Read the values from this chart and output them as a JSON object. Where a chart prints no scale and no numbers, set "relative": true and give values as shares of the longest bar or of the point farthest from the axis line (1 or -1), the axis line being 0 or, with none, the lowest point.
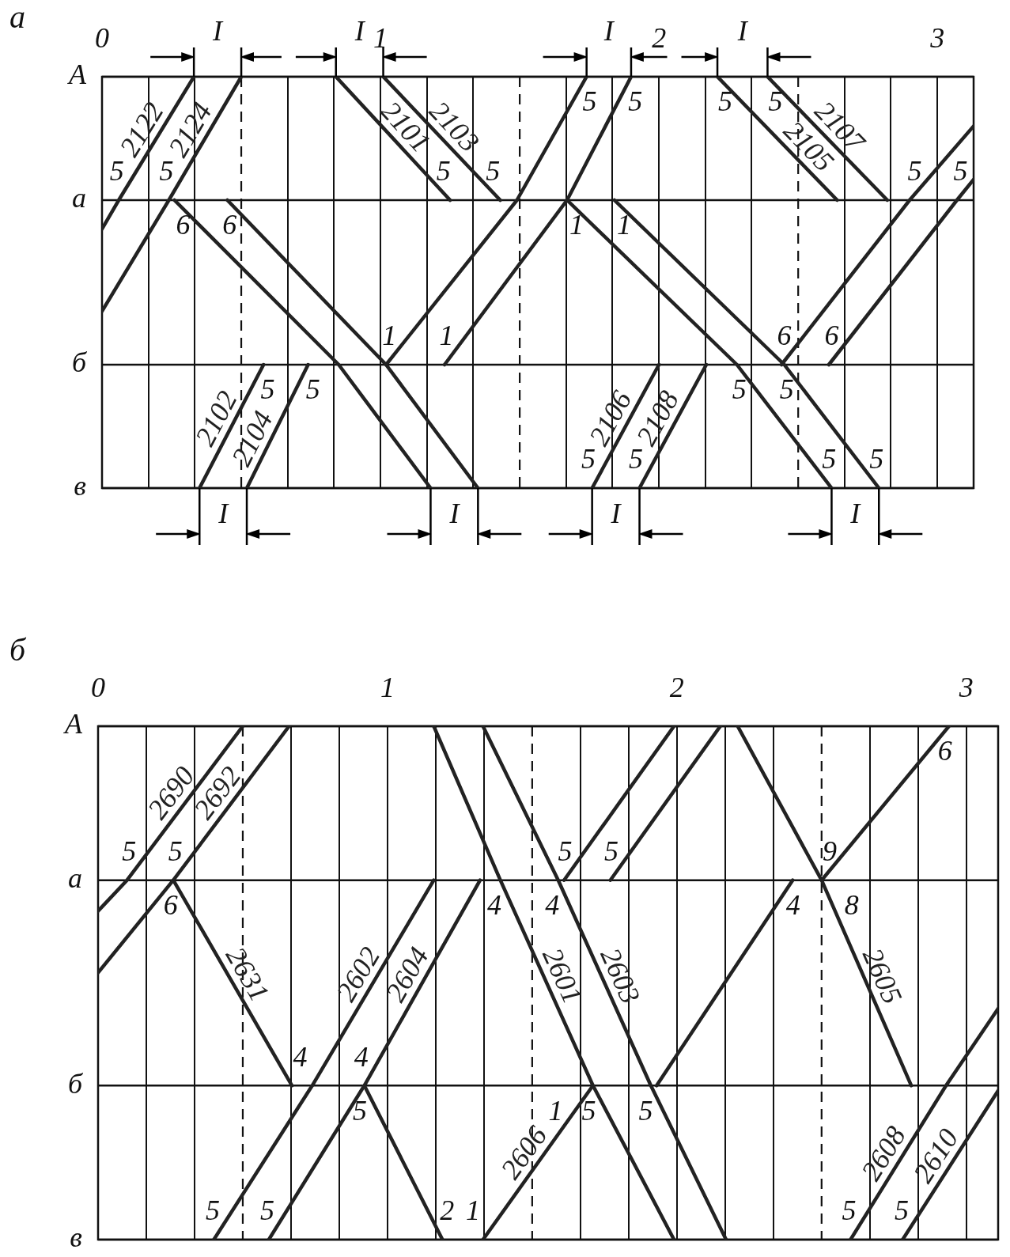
{
  "chart_data": [
    {
      "type": "line",
      "title": "а",
      "relative": true,
      "grid": "x",
      "xlim": [
        0,
        3.13
      ],
      "xticks": [
        0,
        {
          "value": 0.167,
          "label": null
        },
        {
          "value": 0.333,
          "label": null
        },
        {
          "value": 0.667,
          "label": null
        },
        {
          "value": 0.833,
          "label": null
        },
        1,
        {
          "value": 1.167,
          "label": null
        },
        {
          "value": 1.333,
          "label": null
        },
        {
          "value": 1.667,
          "label": null
        },
        {
          "value": 1.833,
          "label": null
        },
        2,
        {
          "value": 2.167,
          "label": null
        },
        {
          "value": 2.333,
          "label": null
        },
        {
          "value": 2.667,
          "label": null
        },
        {
          "value": 2.833,
          "label": null
        },
        3
      ],
      "ref_lines": [
        {
          "axis": "y",
          "value": 1,
          "label": "А"
        },
        {
          "axis": "y",
          "value": 0.7,
          "label": "а"
        },
        {
          "axis": "y",
          "value": 0.3,
          "label": "б"
        },
        {
          "axis": "y",
          "value": 0,
          "label": "в"
        },
        {
          "axis": "x",
          "value": 0.5,
          "line_style": "dashed"
        },
        {
          "axis": "x",
          "value": 1.5,
          "line_style": "dashed"
        },
        {
          "axis": "x",
          "value": 2.5,
          "line_style": "dashed"
        }
      ],
      "series": [
        {
          "name": "2122",
          "color": "#222222",
          "x": [
            0,
            0.06,
            0.33
          ],
          "values": [
            0.63,
            0.7,
            1
          ]
        },
        {
          "name": "2124",
          "color": "#222222",
          "x": [
            0,
            0.24,
            0.5
          ],
          "values": [
            0.43,
            0.7,
            1
          ]
        },
        {
          "color": "#222222",
          "x": [
            0.26,
            0.85,
            1.18
          ],
          "values": [
            0.7,
            0.3,
            0
          ]
        },
        {
          "color": "#222222",
          "x": [
            0.45,
            1.02,
            1.35
          ],
          "values": [
            0.7,
            0.3,
            0
          ]
        },
        {
          "name": "2102",
          "color": "#222222",
          "x": [
            0.35,
            0.58
          ],
          "values": [
            0,
            0.3
          ]
        },
        {
          "name": "2104",
          "color": "#222222",
          "x": [
            0.52,
            0.74
          ],
          "values": [
            0,
            0.3
          ]
        },
        {
          "name": "2101",
          "color": "#222222",
          "x": [
            0.84,
            1.25
          ],
          "values": [
            1,
            0.7
          ]
        },
        {
          "name": "2103",
          "color": "#222222",
          "x": [
            1.01,
            1.43
          ],
          "values": [
            1,
            0.7
          ]
        },
        {
          "color": "#222222",
          "x": [
            1.02,
            1.49,
            1.74
          ],
          "values": [
            0.3,
            0.7,
            1
          ]
        },
        {
          "color": "#222222",
          "x": [
            1.23,
            1.67,
            1.9
          ],
          "values": [
            0.3,
            0.7,
            1
          ]
        },
        {
          "color": "#222222",
          "x": [
            1.67,
            2.28,
            2.62
          ],
          "values": [
            0.7,
            0.3,
            0
          ]
        },
        {
          "color": "#222222",
          "x": [
            1.84,
            2.45,
            2.79
          ],
          "values": [
            0.7,
            0.3,
            0
          ]
        },
        {
          "name": "2106",
          "color": "#222222",
          "x": [
            1.76,
            2.0
          ],
          "values": [
            0,
            0.3
          ]
        },
        {
          "name": "2108",
          "color": "#222222",
          "x": [
            1.93,
            2.17
          ],
          "values": [
            0,
            0.3
          ]
        },
        {
          "name": "2105",
          "color": "#222222",
          "x": [
            2.21,
            2.64
          ],
          "values": [
            1,
            0.7
          ]
        },
        {
          "name": "2107",
          "color": "#222222",
          "x": [
            2.39,
            2.82
          ],
          "values": [
            1,
            0.7
          ]
        },
        {
          "color": "#222222",
          "x": [
            2.44,
            2.9,
            3.13
          ],
          "values": [
            0.3,
            0.7,
            0.88
          ]
        },
        {
          "color": "#222222",
          "x": [
            2.61,
            3.07,
            3.13
          ],
          "values": [
            0.3,
            0.7,
            0.75
          ]
        }
      ],
      "annotations": [
        {
          "text": "I",
          "x": 0.33,
          "y": 1
        },
        {
          "text": "I",
          "x": 0.84,
          "y": 1
        },
        {
          "text": "I",
          "x": 1.74,
          "y": 1
        },
        {
          "text": "I",
          "x": 2.21,
          "y": 1
        },
        {
          "text": "I",
          "x": 0.35,
          "y": 0
        },
        {
          "text": "I",
          "x": 1.18,
          "y": 0
        },
        {
          "text": "I",
          "x": 1.76,
          "y": 0
        },
        {
          "text": "I",
          "x": 2.62,
          "y": 0
        },
        {
          "text": "5",
          "x": 0.12,
          "y": 0.77
        },
        {
          "text": "5",
          "x": 0.3,
          "y": 0.77
        },
        {
          "text": "6",
          "x": 0.36,
          "y": 0.63
        },
        {
          "text": "6",
          "x": 0.55,
          "y": 0.63
        },
        {
          "text": "5",
          "x": 0.53,
          "y": 0.23
        },
        {
          "text": "5",
          "x": 0.69,
          "y": 0.23
        },
        {
          "text": "5",
          "x": 1.15,
          "y": 0.77
        },
        {
          "text": "5",
          "x": 1.33,
          "y": 0.77
        },
        {
          "text": "1",
          "x": 1.1,
          "y": 0.37
        },
        {
          "text": "5",
          "x": 1.68,
          "y": 0.93
        },
        {
          "text": "1",
          "x": 1.31,
          "y": 0.37
        },
        {
          "text": "5",
          "x": 1.85,
          "y": 0.93
        },
        {
          "text": "1",
          "x": 1.78,
          "y": 0.63
        },
        {
          "text": "5",
          "x": 2.36,
          "y": 0.23
        },
        {
          "text": "5",
          "x": 2.54,
          "y": 0.07
        },
        {
          "text": "1",
          "x": 1.95,
          "y": 0.63
        },
        {
          "text": "5",
          "x": 2.53,
          "y": 0.23
        },
        {
          "text": "5",
          "x": 2.71,
          "y": 0.07
        },
        {
          "text": "5",
          "x": 1.82,
          "y": 0.07
        },
        {
          "text": "5",
          "x": 1.99,
          "y": 0.07
        },
        {
          "text": "5",
          "x": 2.31,
          "y": 0.93
        },
        {
          "text": "5",
          "x": 2.49,
          "y": 0.93
        },
        {
          "text": "6",
          "x": 2.52,
          "y": 0.37
        },
        {
          "text": "5",
          "x": 2.99,
          "y": 0.77
        },
        {
          "text": "6",
          "x": 2.69,
          "y": 0.37
        },
        {
          "text": "5",
          "x": 3.09,
          "y": 0.72
        }
      ]
    },
    {
      "type": "line",
      "title": "б",
      "relative": true,
      "grid": "x",
      "xlim": [
        0,
        3.11
      ],
      "xticks": [
        0,
        {
          "value": 0.167,
          "label": null
        },
        {
          "value": 0.333,
          "label": null
        },
        {
          "value": 0.667,
          "label": null
        },
        {
          "value": 0.833,
          "label": null
        },
        1,
        {
          "value": 1.167,
          "label": null
        },
        {
          "value": 1.333,
          "label": null
        },
        {
          "value": 1.667,
          "label": null
        },
        {
          "value": 1.833,
          "label": null
        },
        2,
        {
          "value": 2.167,
          "label": null
        },
        {
          "value": 2.333,
          "label": null
        },
        {
          "value": 2.667,
          "label": null
        },
        {
          "value": 2.833,
          "label": null
        },
        3
      ],
      "ref_lines": [
        {
          "axis": "y",
          "value": 1,
          "label": "А"
        },
        {
          "axis": "y",
          "value": 0.7,
          "label": "а"
        },
        {
          "axis": "y",
          "value": 0.3,
          "label": "б"
        },
        {
          "axis": "y",
          "value": 0,
          "label": "в"
        },
        {
          "axis": "x",
          "value": 0.5,
          "line_style": "dashed"
        },
        {
          "axis": "x",
          "value": 1.5,
          "line_style": "dashed"
        },
        {
          "axis": "x",
          "value": 2.5,
          "line_style": "dashed"
        }
      ],
      "series": [
        {
          "name": "2690",
          "color": "#222222",
          "x": [
            0,
            0.1,
            0.5
          ],
          "values": [
            0.64,
            0.7,
            1
          ]
        },
        {
          "name": "2692",
          "color": "#222222",
          "x": [
            0,
            0.26,
            0.66
          ],
          "values": [
            0.52,
            0.7,
            1
          ]
        },
        {
          "name": "2631",
          "color": "#222222",
          "x": [
            0.26,
            0.67
          ],
          "values": [
            0.7,
            0.3
          ]
        },
        {
          "name": "2602",
          "color": "#222222",
          "x": [
            0.4,
            0.74,
            1.16
          ],
          "values": [
            0,
            0.3,
            0.7
          ]
        },
        {
          "name": "2604",
          "color": "#222222",
          "x": [
            0.59,
            0.92,
            1.32
          ],
          "values": [
            0,
            0.3,
            0.7
          ]
        },
        {
          "color": "#222222",
          "x": [
            0.92,
            1.19
          ],
          "values": [
            0.3,
            0
          ]
        },
        {
          "name": "2601",
          "color": "#222222",
          "x": [
            1.16,
            1.39,
            1.71,
            1.99
          ],
          "values": [
            1,
            0.7,
            0.3,
            0
          ]
        },
        {
          "name": "2603",
          "color": "#222222",
          "x": [
            1.33,
            1.59,
            1.91,
            2.17
          ],
          "values": [
            1,
            0.7,
            0.3,
            0
          ]
        },
        {
          "name": "2606",
          "color": "#222222",
          "x": [
            1.33,
            1.71
          ],
          "values": [
            0,
            0.3
          ]
        },
        {
          "color": "#222222",
          "x": [
            1.61,
            1.99
          ],
          "values": [
            0.7,
            1
          ]
        },
        {
          "color": "#222222",
          "x": [
            1.77,
            2.15
          ],
          "values": [
            0.7,
            1
          ]
        },
        {
          "color": "#222222",
          "x": [
            1.93,
            2.4
          ],
          "values": [
            0.3,
            0.7
          ]
        },
        {
          "color": "#222222",
          "x": [
            2.5,
            2.94
          ],
          "values": [
            0.7,
            1
          ]
        },
        {
          "name": "2605",
          "color": "#222222",
          "x": [
            2.21,
            2.5,
            2.81
          ],
          "values": [
            1,
            0.7,
            0.3
          ]
        },
        {
          "name": "2608",
          "color": "#222222",
          "x": [
            2.6,
            2.93,
            3.11
          ],
          "values": [
            0,
            0.3,
            0.45
          ]
        },
        {
          "name": "2610",
          "color": "#222222",
          "x": [
            2.78,
            3.11
          ],
          "values": [
            0,
            0.29
          ]
        }
      ],
      "annotations": [
        {
          "text": "5",
          "x": 0.18,
          "y": 0.76
        },
        {
          "text": "5",
          "x": 0.34,
          "y": 0.76
        },
        {
          "text": "6",
          "x": 0.32,
          "y": 0.64
        },
        {
          "text": "4",
          "x": 0.61,
          "y": 0.36
        },
        {
          "text": "5",
          "x": 0.47,
          "y": 0.06
        },
        {
          "text": "5",
          "x": 0.66,
          "y": 0.06
        },
        {
          "text": "4",
          "x": 0.98,
          "y": 0.36
        },
        {
          "text": "5",
          "x": 0.97,
          "y": 0.24
        },
        {
          "text": "2",
          "x": 1.14,
          "y": 0.06
        },
        {
          "text": "4",
          "x": 1.44,
          "y": 0.64
        },
        {
          "text": "5",
          "x": 1.77,
          "y": 0.24
        },
        {
          "text": "4",
          "x": 1.64,
          "y": 0.64
        },
        {
          "text": "5",
          "x": 1.96,
          "y": 0.24
        },
        {
          "text": "1",
          "x": 1.41,
          "y": 0.06
        },
        {
          "text": "1",
          "x": 1.63,
          "y": 0.24
        },
        {
          "text": "5",
          "x": 1.69,
          "y": 0.76
        },
        {
          "text": "5",
          "x": 1.85,
          "y": 0.76
        },
        {
          "text": "4",
          "x": 2.33,
          "y": 0.64
        },
        {
          "text": "9",
          "x": 2.59,
          "y": 0.76
        },
        {
          "text": "6",
          "x": 2.85,
          "y": 0.94
        },
        {
          "text": "8",
          "x": 2.55,
          "y": 0.64
        },
        {
          "text": "5",
          "x": 2.67,
          "y": 0.06
        },
        {
          "text": "5",
          "x": 2.85,
          "y": 0.06
        }
      ]
    }
  ]
}
